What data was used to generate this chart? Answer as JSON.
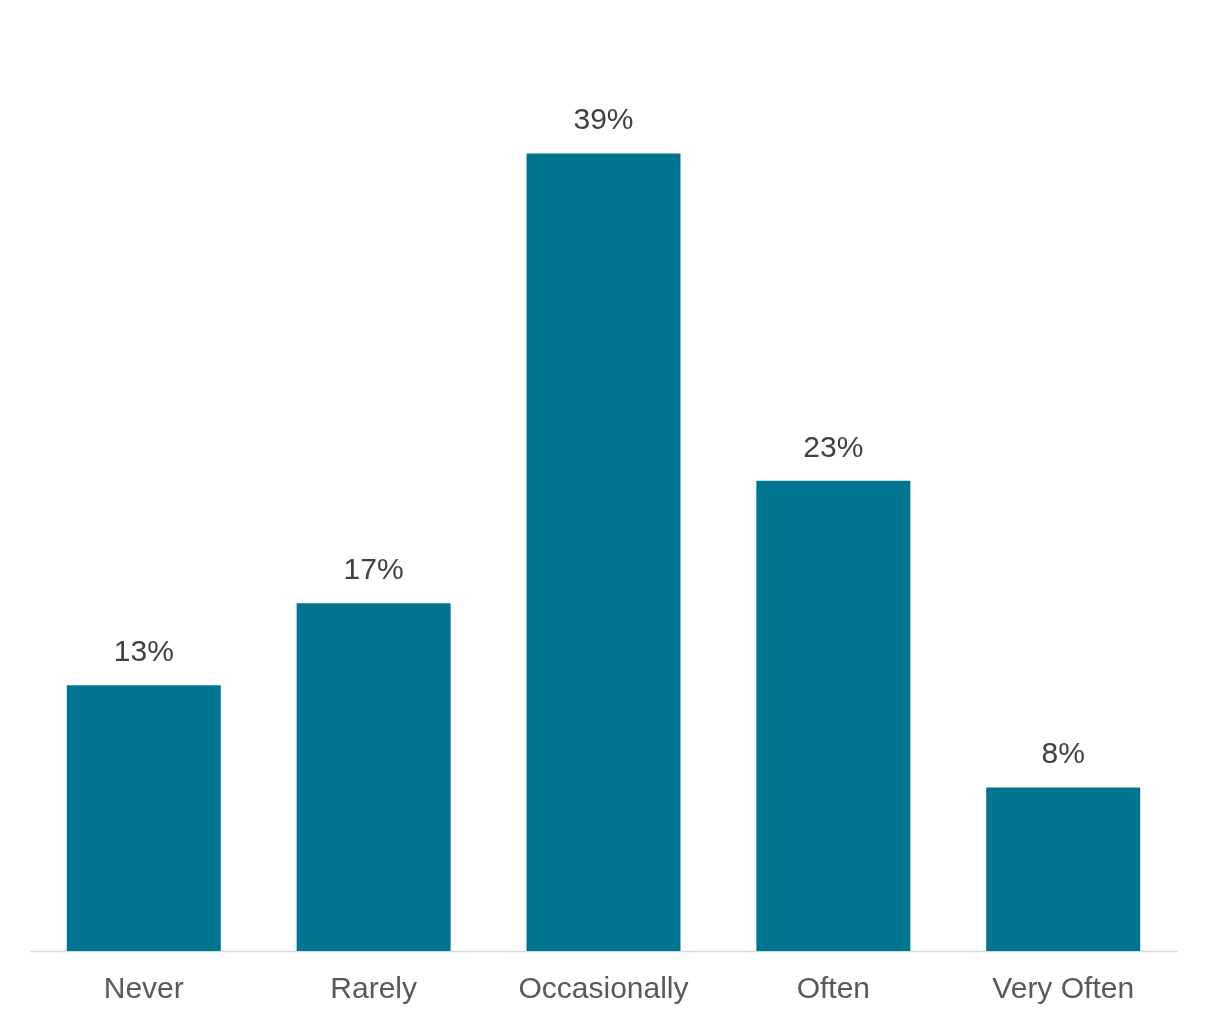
{
  "chart_data": {
    "type": "bar",
    "categories": [
      "Never",
      "Rarely",
      "Occasionally",
      "Often",
      "Very Often"
    ],
    "values": [
      13,
      17,
      39,
      23,
      8
    ],
    "value_labels": [
      "13%",
      "17%",
      "39%",
      "23%",
      "8%"
    ],
    "color": "#00758f",
    "grid": false,
    "tick_labels": "x"
  }
}
